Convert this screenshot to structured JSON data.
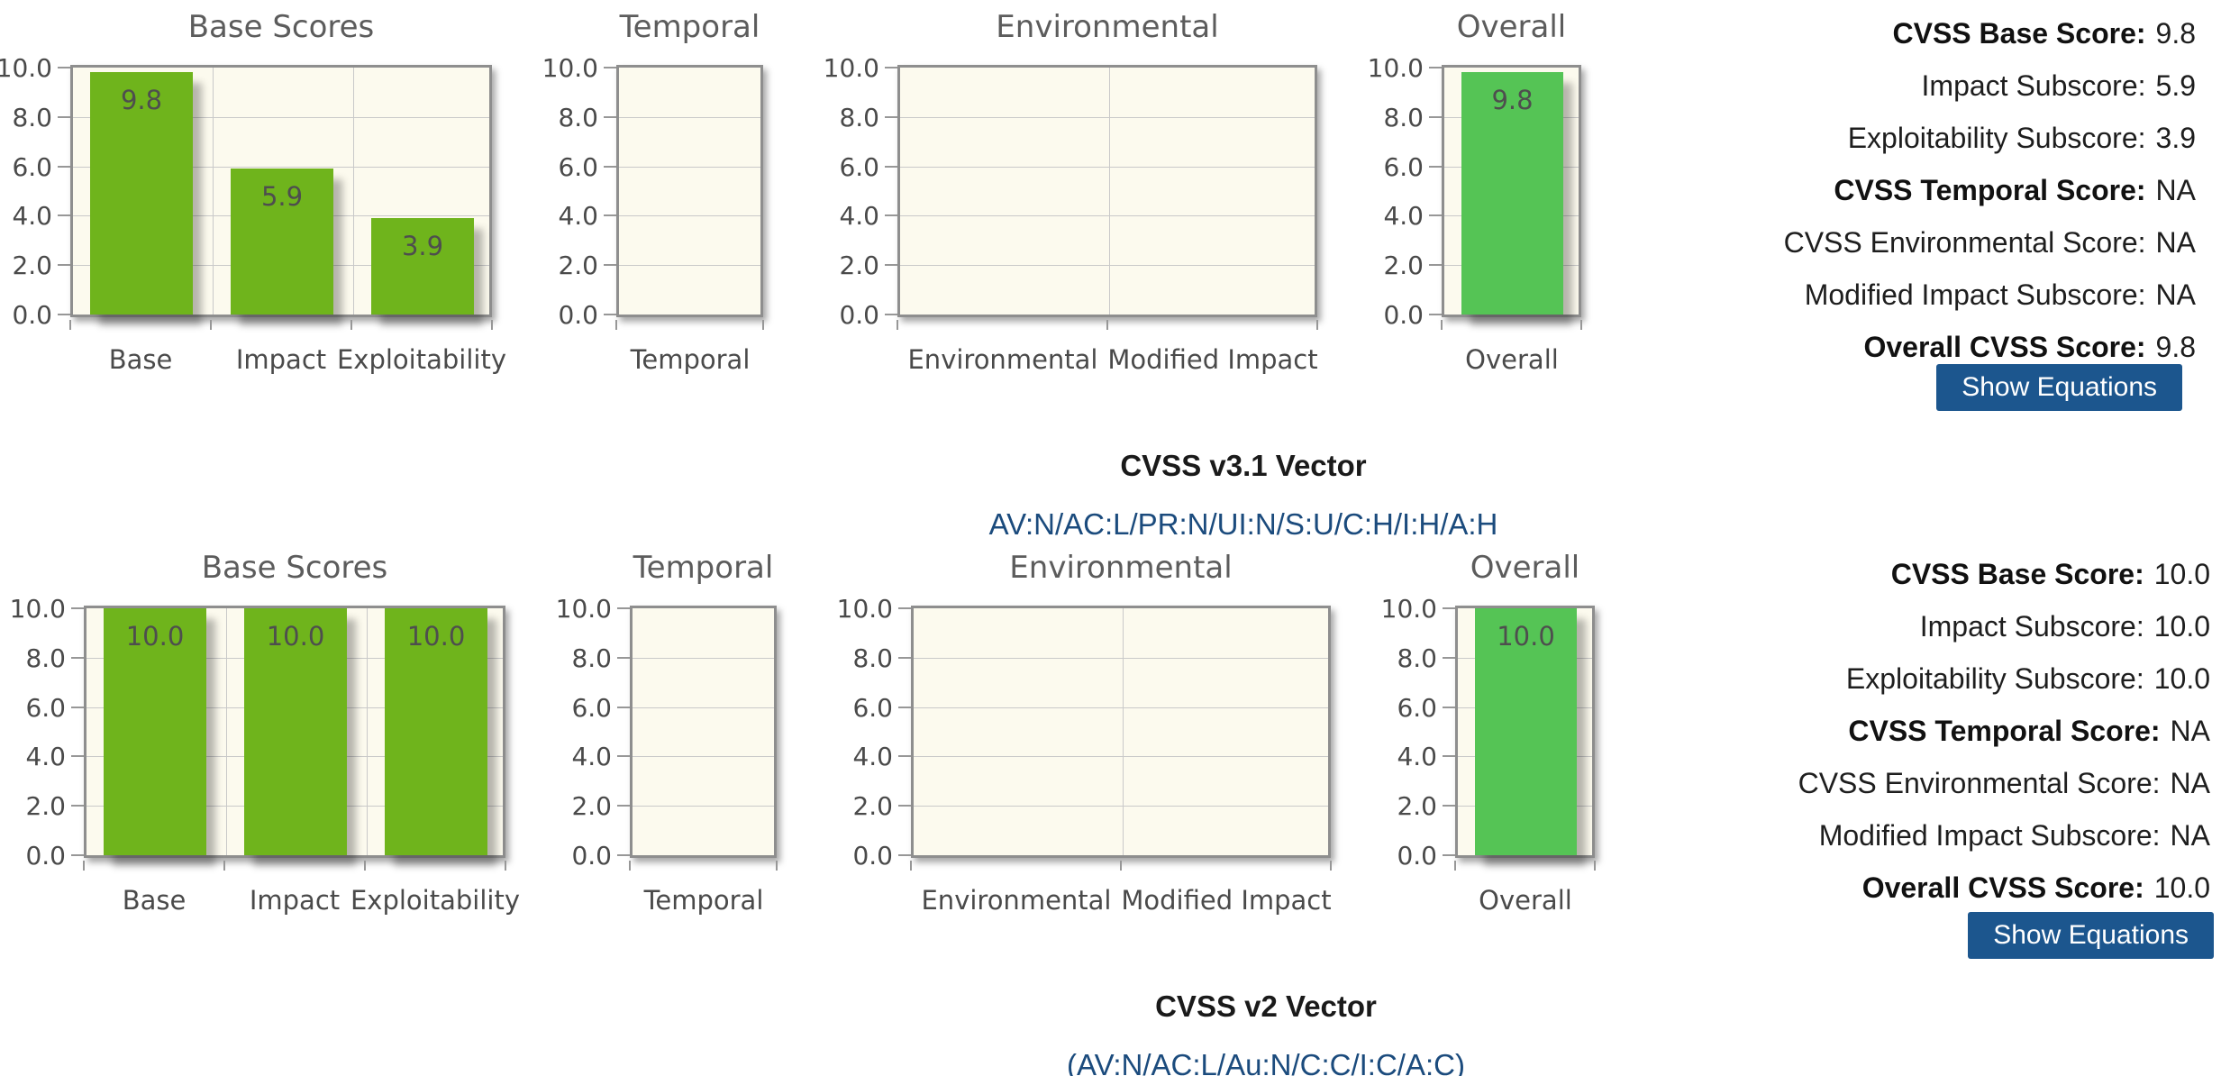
{
  "colors": {
    "base_bar_green": "#6FB41C",
    "overall_bar_green": "#55C455",
    "plot_background": "#FCFAEE",
    "gridline_gray": "#C9C9C9",
    "axis_border_gray": "#8E8E8E",
    "chart_text_gray": "#4E4E4E",
    "button_bg": "#1C568E",
    "button_text": "#FFFFFF",
    "link_blue": "#1B4B7D",
    "body_text": "#1E1E1E"
  },
  "chart_data": [
    {
      "group": "CVSS v3.1",
      "charts": [
        {
          "type": "bar",
          "title": "Base Scores",
          "categories": [
            "Base",
            "Impact",
            "Exploitability"
          ],
          "values": [
            9.8,
            5.9,
            3.9
          ],
          "ylim": [
            0,
            10
          ],
          "yticks": [
            "0.0",
            "2.0",
            "4.0",
            "6.0",
            "8.0",
            "10.0"
          ],
          "grid": true,
          "bar_color": "#6FB41C"
        },
        {
          "type": "bar",
          "title": "Temporal",
          "categories": [
            "Temporal"
          ],
          "values": [
            null
          ],
          "ylim": [
            0,
            10
          ],
          "yticks": [
            "0.0",
            "2.0",
            "4.0",
            "6.0",
            "8.0",
            "10.0"
          ],
          "grid": true,
          "bar_color": "#6FB41C"
        },
        {
          "type": "bar",
          "title": "Environmental",
          "categories": [
            "Environmental",
            "Modified Impact"
          ],
          "values": [
            null,
            null
          ],
          "ylim": [
            0,
            10
          ],
          "yticks": [
            "0.0",
            "2.0",
            "4.0",
            "6.0",
            "8.0",
            "10.0"
          ],
          "grid": true,
          "bar_color": "#6FB41C"
        },
        {
          "type": "bar",
          "title": "Overall",
          "categories": [
            "Overall"
          ],
          "values": [
            9.8
          ],
          "ylim": [
            0,
            10
          ],
          "yticks": [
            "0.0",
            "2.0",
            "4.0",
            "6.0",
            "8.0",
            "10.0"
          ],
          "grid": true,
          "bar_color": "#55C455"
        }
      ]
    },
    {
      "group": "CVSS v2",
      "charts": [
        {
          "type": "bar",
          "title": "Base Scores",
          "categories": [
            "Base",
            "Impact",
            "Exploitability"
          ],
          "values": [
            10.0,
            10.0,
            10.0
          ],
          "ylim": [
            0,
            10
          ],
          "yticks": [
            "0.0",
            "2.0",
            "4.0",
            "6.0",
            "8.0",
            "10.0"
          ],
          "grid": true,
          "bar_color": "#6FB41C"
        },
        {
          "type": "bar",
          "title": "Temporal",
          "categories": [
            "Temporal"
          ],
          "values": [
            null
          ],
          "ylim": [
            0,
            10
          ],
          "yticks": [
            "0.0",
            "2.0",
            "4.0",
            "6.0",
            "8.0",
            "10.0"
          ],
          "grid": true,
          "bar_color": "#6FB41C"
        },
        {
          "type": "bar",
          "title": "Environmental",
          "categories": [
            "Environmental",
            "Modified Impact"
          ],
          "values": [
            null,
            null
          ],
          "ylim": [
            0,
            10
          ],
          "yticks": [
            "0.0",
            "2.0",
            "4.0",
            "6.0",
            "8.0",
            "10.0"
          ],
          "grid": true,
          "bar_color": "#6FB41C"
        },
        {
          "type": "bar",
          "title": "Overall",
          "categories": [
            "Overall"
          ],
          "values": [
            10.0
          ],
          "ylim": [
            0,
            10
          ],
          "yticks": [
            "0.0",
            "2.0",
            "4.0",
            "6.0",
            "8.0",
            "10.0"
          ],
          "grid": true,
          "bar_color": "#55C455"
        }
      ]
    }
  ],
  "rows": [
    {
      "section": "CVSS v3.1",
      "scores": [
        {
          "label": "CVSS Base Score:",
          "value": "9.8",
          "bold": true
        },
        {
          "label": "Impact Subscore:",
          "value": "5.9",
          "bold": false
        },
        {
          "label": "Exploitability Subscore:",
          "value": "3.9",
          "bold": false
        },
        {
          "label": "CVSS Temporal Score:",
          "value": "NA",
          "bold": true
        },
        {
          "label": "CVSS Environmental Score:",
          "value": "NA",
          "bold": false
        },
        {
          "label": "Modified Impact Subscore:",
          "value": "NA",
          "bold": false
        },
        {
          "label": "Overall CVSS Score:",
          "value": "9.8",
          "bold": true
        }
      ],
      "button_label": "Show Equations",
      "vector_title": "CVSS v3.1 Vector",
      "vector_value": "AV:N/AC:L/PR:N/UI:N/S:U/C:H/I:H/A:H"
    },
    {
      "section": "CVSS v2",
      "scores": [
        {
          "label": "CVSS Base Score:",
          "value": "10.0",
          "bold": true
        },
        {
          "label": "Impact Subscore:",
          "value": "10.0",
          "bold": false
        },
        {
          "label": "Exploitability Subscore:",
          "value": "10.0",
          "bold": false
        },
        {
          "label": "CVSS Temporal Score:",
          "value": "NA",
          "bold": true
        },
        {
          "label": "CVSS Environmental Score:",
          "value": "NA",
          "bold": false
        },
        {
          "label": "Modified Impact Subscore:",
          "value": "NA",
          "bold": false
        },
        {
          "label": "Overall CVSS Score:",
          "value": "10.0",
          "bold": true
        }
      ],
      "button_label": "Show Equations",
      "vector_title": "CVSS v2 Vector",
      "vector_value": "(AV:N/AC:L/Au:N/C:C/I:C/A:C)"
    }
  ]
}
